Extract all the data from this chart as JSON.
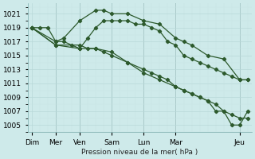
{
  "bg_color": "#ceeaea",
  "grid_color_major": "#b8d8d8",
  "grid_color_minor": "#c8e4e4",
  "line_color": "#2d5a2d",
  "xlabel": "Pression niveau de la mer( hPa )",
  "ylim": [
    1004,
    1022.5
  ],
  "yticks": [
    1005,
    1007,
    1009,
    1011,
    1013,
    1015,
    1017,
    1019,
    1021
  ],
  "day_labels": [
    "Dim",
    "Mer",
    "Ven",
    "Sam",
    "Lun",
    "Mar",
    "Jeu"
  ],
  "day_x": [
    0,
    3,
    6,
    10,
    14,
    18,
    26
  ],
  "sep_x": [
    3,
    6,
    10,
    14,
    18,
    26
  ],
  "line1_x": [
    0,
    1,
    2,
    3,
    4,
    5,
    6,
    7,
    8,
    9,
    10,
    11,
    12,
    13,
    14,
    15,
    16,
    17,
    18,
    19,
    20,
    21,
    22,
    23,
    24,
    25,
    26,
    27
  ],
  "line1_y": [
    1019,
    1019,
    1019,
    1017,
    1017,
    1016.5,
    1016,
    1017.5,
    1019,
    1020,
    1020,
    1020,
    1020,
    1019.5,
    1019.5,
    1019,
    1018.5,
    1017,
    1016.5,
    1015,
    1014.5,
    1014,
    1013.5,
    1013,
    1012.5,
    1012,
    1011.5,
    1011.5
  ],
  "line2_x": [
    0,
    3,
    4,
    6,
    8,
    9,
    10,
    12,
    14,
    16,
    18,
    19,
    20,
    22,
    24,
    26,
    27
  ],
  "line2_y": [
    1019,
    1017,
    1017.5,
    1020,
    1021.5,
    1021.5,
    1021,
    1021,
    1020,
    1019.5,
    1017.5,
    1017,
    1016.5,
    1015,
    1014.5,
    1011.5,
    1011.5
  ],
  "line3_x": [
    0,
    3,
    6,
    7,
    8,
    9,
    10,
    12,
    14,
    15,
    16,
    17,
    18,
    19,
    20,
    21,
    22,
    23,
    24,
    25,
    26,
    27
  ],
  "line3_y": [
    1019,
    1016.5,
    1016.5,
    1016,
    1016,
    1015.5,
    1015,
    1014,
    1013,
    1012.5,
    1012,
    1011.5,
    1010.5,
    1010,
    1009.5,
    1009,
    1008.5,
    1008,
    1007,
    1006.5,
    1006,
    1006
  ],
  "line4_x": [
    0,
    3,
    6,
    8,
    10,
    12,
    14,
    16,
    18,
    19,
    20,
    21,
    22,
    23,
    24,
    25,
    26,
    27
  ],
  "line4_y": [
    1019,
    1016.5,
    1016,
    1016,
    1015.5,
    1014,
    1012.5,
    1011.5,
    1010.5,
    1010,
    1009.5,
    1009,
    1008.5,
    1007,
    1007,
    1005,
    1005,
    1007
  ],
  "label_fontsize": 6.5,
  "tick_fontsize": 6.5
}
